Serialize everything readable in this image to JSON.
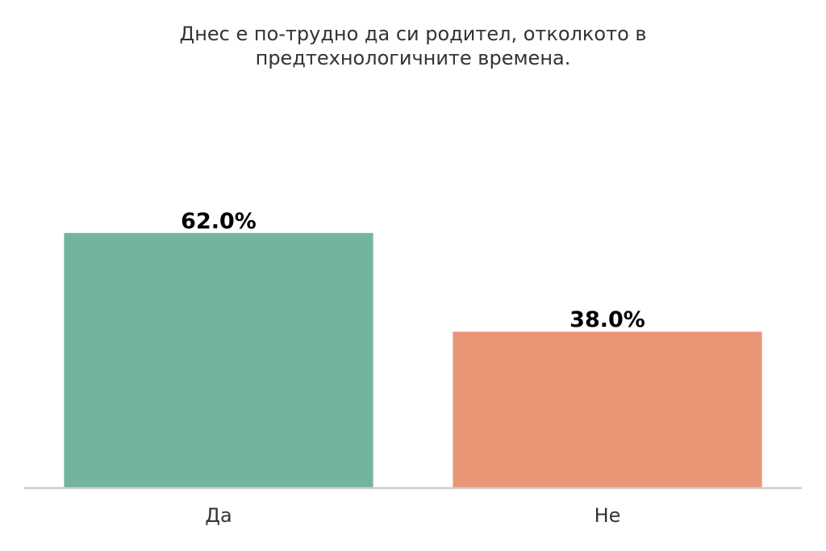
{
  "chart_data": {
    "type": "bar",
    "title_lines": [
      "Днес е по-трудно да си родител, отколкото в",
      "предтехнологичните времена."
    ],
    "categories": [
      "Да",
      "Не"
    ],
    "values": [
      62.0,
      38.0
    ],
    "value_labels": [
      "62.0%",
      "38.0%"
    ],
    "colors": [
      "#73b4a0",
      "#e89676"
    ],
    "ylim": [
      0,
      100
    ],
    "grid": false,
    "legend": "none",
    "xlabel": "",
    "ylabel": ""
  }
}
